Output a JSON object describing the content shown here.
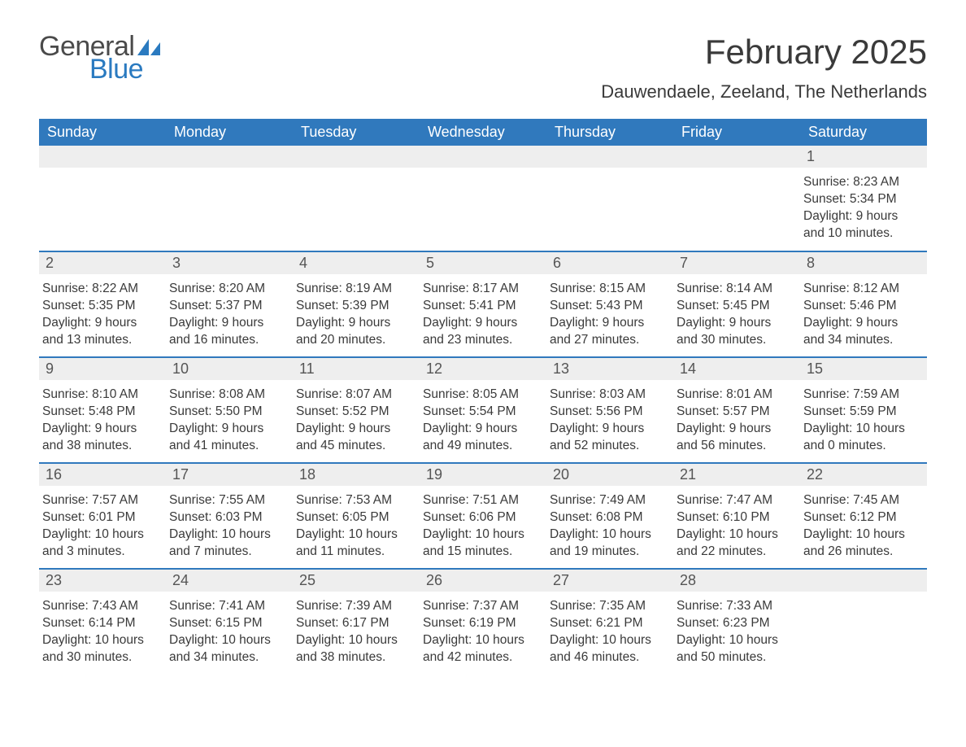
{
  "logo": {
    "word1": "General",
    "word2": "Blue",
    "icon_color": "#2a7ac0",
    "text_color_gray": "#4a4a4a",
    "text_color_blue": "#2a7ac0"
  },
  "title": "February 2025",
  "subtitle": "Dauwendaele, Zeeland, The Netherlands",
  "colors": {
    "header_bg": "#3079bd",
    "header_text": "#ffffff",
    "daynum_bg": "#eeeeee",
    "row_border": "#3079bd",
    "body_text": "#3a3a3a",
    "page_bg": "#ffffff"
  },
  "typography": {
    "title_fontsize": 42,
    "subtitle_fontsize": 22,
    "dayheader_fontsize": 18,
    "daynum_fontsize": 18,
    "details_fontsize": 15.5,
    "font_family": "Arial"
  },
  "day_headers": [
    "Sunday",
    "Monday",
    "Tuesday",
    "Wednesday",
    "Thursday",
    "Friday",
    "Saturday"
  ],
  "weeks": [
    [
      null,
      null,
      null,
      null,
      null,
      null,
      {
        "n": "1",
        "sunrise": "Sunrise: 8:23 AM",
        "sunset": "Sunset: 5:34 PM",
        "daylight1": "Daylight: 9 hours",
        "daylight2": "and 10 minutes."
      }
    ],
    [
      {
        "n": "2",
        "sunrise": "Sunrise: 8:22 AM",
        "sunset": "Sunset: 5:35 PM",
        "daylight1": "Daylight: 9 hours",
        "daylight2": "and 13 minutes."
      },
      {
        "n": "3",
        "sunrise": "Sunrise: 8:20 AM",
        "sunset": "Sunset: 5:37 PM",
        "daylight1": "Daylight: 9 hours",
        "daylight2": "and 16 minutes."
      },
      {
        "n": "4",
        "sunrise": "Sunrise: 8:19 AM",
        "sunset": "Sunset: 5:39 PM",
        "daylight1": "Daylight: 9 hours",
        "daylight2": "and 20 minutes."
      },
      {
        "n": "5",
        "sunrise": "Sunrise: 8:17 AM",
        "sunset": "Sunset: 5:41 PM",
        "daylight1": "Daylight: 9 hours",
        "daylight2": "and 23 minutes."
      },
      {
        "n": "6",
        "sunrise": "Sunrise: 8:15 AM",
        "sunset": "Sunset: 5:43 PM",
        "daylight1": "Daylight: 9 hours",
        "daylight2": "and 27 minutes."
      },
      {
        "n": "7",
        "sunrise": "Sunrise: 8:14 AM",
        "sunset": "Sunset: 5:45 PM",
        "daylight1": "Daylight: 9 hours",
        "daylight2": "and 30 minutes."
      },
      {
        "n": "8",
        "sunrise": "Sunrise: 8:12 AM",
        "sunset": "Sunset: 5:46 PM",
        "daylight1": "Daylight: 9 hours",
        "daylight2": "and 34 minutes."
      }
    ],
    [
      {
        "n": "9",
        "sunrise": "Sunrise: 8:10 AM",
        "sunset": "Sunset: 5:48 PM",
        "daylight1": "Daylight: 9 hours",
        "daylight2": "and 38 minutes."
      },
      {
        "n": "10",
        "sunrise": "Sunrise: 8:08 AM",
        "sunset": "Sunset: 5:50 PM",
        "daylight1": "Daylight: 9 hours",
        "daylight2": "and 41 minutes."
      },
      {
        "n": "11",
        "sunrise": "Sunrise: 8:07 AM",
        "sunset": "Sunset: 5:52 PM",
        "daylight1": "Daylight: 9 hours",
        "daylight2": "and 45 minutes."
      },
      {
        "n": "12",
        "sunrise": "Sunrise: 8:05 AM",
        "sunset": "Sunset: 5:54 PM",
        "daylight1": "Daylight: 9 hours",
        "daylight2": "and 49 minutes."
      },
      {
        "n": "13",
        "sunrise": "Sunrise: 8:03 AM",
        "sunset": "Sunset: 5:56 PM",
        "daylight1": "Daylight: 9 hours",
        "daylight2": "and 52 minutes."
      },
      {
        "n": "14",
        "sunrise": "Sunrise: 8:01 AM",
        "sunset": "Sunset: 5:57 PM",
        "daylight1": "Daylight: 9 hours",
        "daylight2": "and 56 minutes."
      },
      {
        "n": "15",
        "sunrise": "Sunrise: 7:59 AM",
        "sunset": "Sunset: 5:59 PM",
        "daylight1": "Daylight: 10 hours",
        "daylight2": "and 0 minutes."
      }
    ],
    [
      {
        "n": "16",
        "sunrise": "Sunrise: 7:57 AM",
        "sunset": "Sunset: 6:01 PM",
        "daylight1": "Daylight: 10 hours",
        "daylight2": "and 3 minutes."
      },
      {
        "n": "17",
        "sunrise": "Sunrise: 7:55 AM",
        "sunset": "Sunset: 6:03 PM",
        "daylight1": "Daylight: 10 hours",
        "daylight2": "and 7 minutes."
      },
      {
        "n": "18",
        "sunrise": "Sunrise: 7:53 AM",
        "sunset": "Sunset: 6:05 PM",
        "daylight1": "Daylight: 10 hours",
        "daylight2": "and 11 minutes."
      },
      {
        "n": "19",
        "sunrise": "Sunrise: 7:51 AM",
        "sunset": "Sunset: 6:06 PM",
        "daylight1": "Daylight: 10 hours",
        "daylight2": "and 15 minutes."
      },
      {
        "n": "20",
        "sunrise": "Sunrise: 7:49 AM",
        "sunset": "Sunset: 6:08 PM",
        "daylight1": "Daylight: 10 hours",
        "daylight2": "and 19 minutes."
      },
      {
        "n": "21",
        "sunrise": "Sunrise: 7:47 AM",
        "sunset": "Sunset: 6:10 PM",
        "daylight1": "Daylight: 10 hours",
        "daylight2": "and 22 minutes."
      },
      {
        "n": "22",
        "sunrise": "Sunrise: 7:45 AM",
        "sunset": "Sunset: 6:12 PM",
        "daylight1": "Daylight: 10 hours",
        "daylight2": "and 26 minutes."
      }
    ],
    [
      {
        "n": "23",
        "sunrise": "Sunrise: 7:43 AM",
        "sunset": "Sunset: 6:14 PM",
        "daylight1": "Daylight: 10 hours",
        "daylight2": "and 30 minutes."
      },
      {
        "n": "24",
        "sunrise": "Sunrise: 7:41 AM",
        "sunset": "Sunset: 6:15 PM",
        "daylight1": "Daylight: 10 hours",
        "daylight2": "and 34 minutes."
      },
      {
        "n": "25",
        "sunrise": "Sunrise: 7:39 AM",
        "sunset": "Sunset: 6:17 PM",
        "daylight1": "Daylight: 10 hours",
        "daylight2": "and 38 minutes."
      },
      {
        "n": "26",
        "sunrise": "Sunrise: 7:37 AM",
        "sunset": "Sunset: 6:19 PM",
        "daylight1": "Daylight: 10 hours",
        "daylight2": "and 42 minutes."
      },
      {
        "n": "27",
        "sunrise": "Sunrise: 7:35 AM",
        "sunset": "Sunset: 6:21 PM",
        "daylight1": "Daylight: 10 hours",
        "daylight2": "and 46 minutes."
      },
      {
        "n": "28",
        "sunrise": "Sunrise: 7:33 AM",
        "sunset": "Sunset: 6:23 PM",
        "daylight1": "Daylight: 10 hours",
        "daylight2": "and 50 minutes."
      },
      null
    ]
  ]
}
